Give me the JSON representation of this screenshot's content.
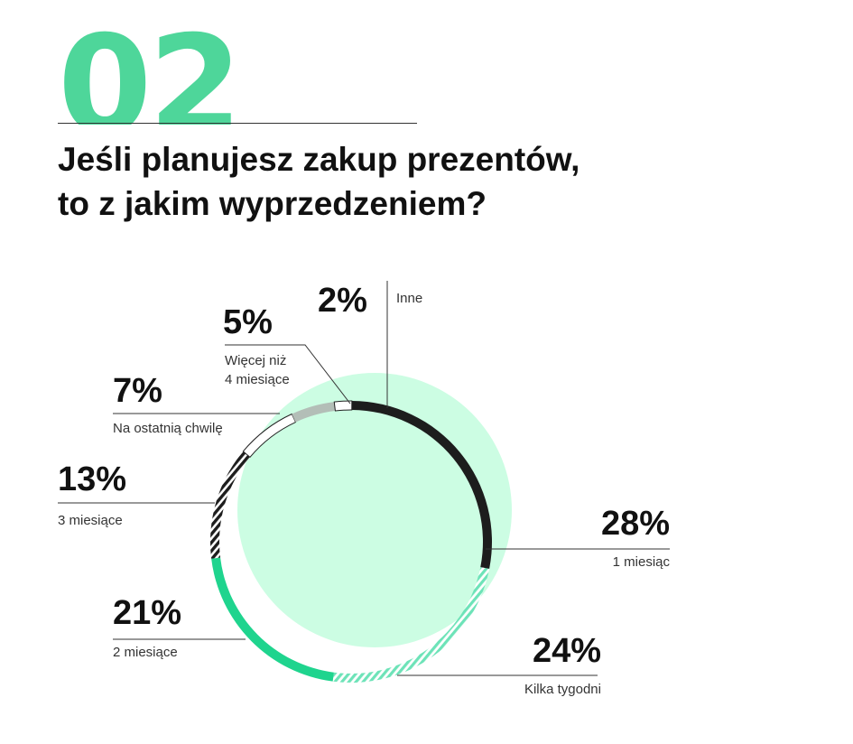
{
  "header": {
    "number": "02",
    "title_lines": [
      "Jeśli planujesz zakup prezentów,",
      "to z jakim wyprzedzeniem?"
    ]
  },
  "colors": {
    "accent_green": "#4ed69a",
    "bg_bubble": "#ccfde3",
    "dark": "#1d1d1d",
    "stripe_mint": "#6de3b8",
    "solid_green": "#1fd48e",
    "grey": "#b3beb7"
  },
  "chart_data": {
    "type": "pie",
    "variant": "donut",
    "title": "Jeśli planujesz zakup prezentów, to z jakim wyprzedzeniem?",
    "unit": "%",
    "slices": [
      {
        "label": "1 miesiąc",
        "value": 28,
        "display": "28%"
      },
      {
        "label": "Kilka tygodni",
        "value": 24,
        "display": "24%"
      },
      {
        "label": "2 miesiące",
        "value": 21,
        "display": "21%"
      },
      {
        "label": "3 miesiące",
        "value": 13,
        "display": "13%"
      },
      {
        "label": "Na ostatnią chwilę",
        "value": 7,
        "display": "7%"
      },
      {
        "label": "Więcej niż 4 miesiące",
        "value": 5,
        "display": "5%"
      },
      {
        "label": "Inne",
        "value": 2,
        "display": "2%"
      }
    ]
  }
}
